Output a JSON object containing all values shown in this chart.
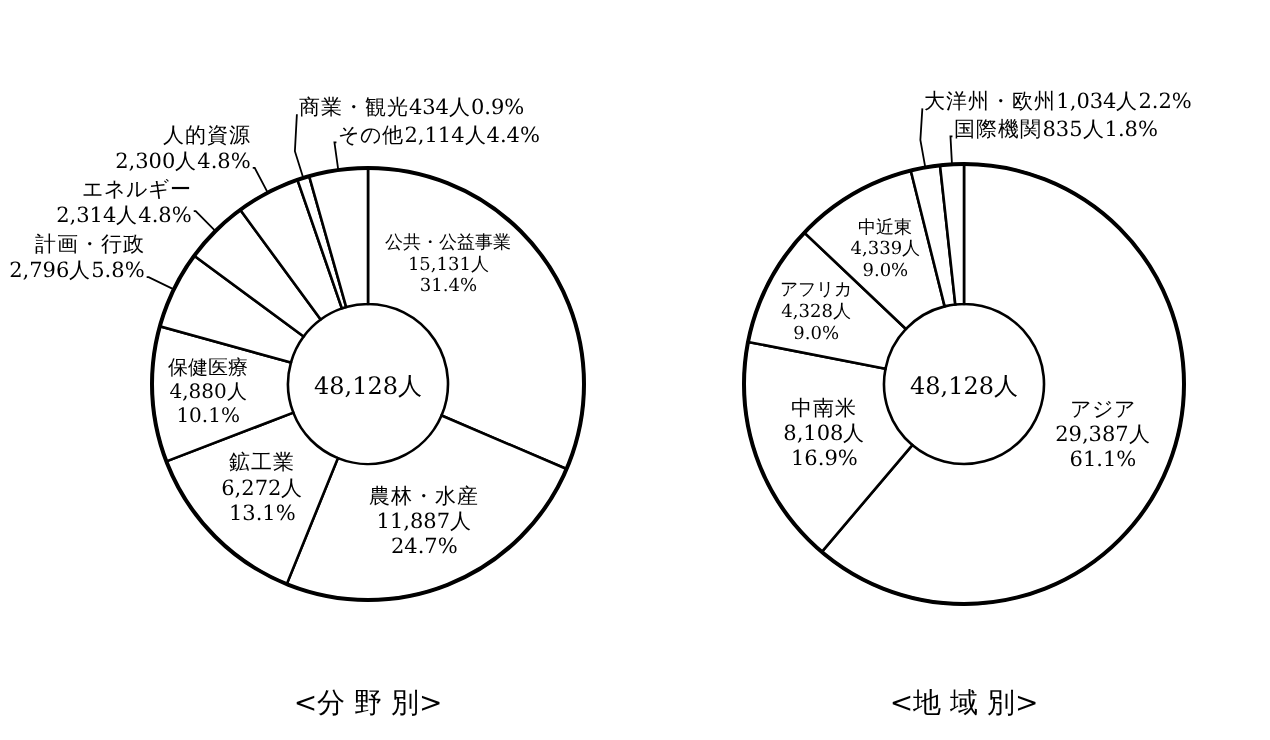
{
  "chart_data": [
    {
      "type": "donut",
      "title": "<分 野 別>",
      "categories": [
        "公共・公益事業",
        "農林・水産",
        "鉱工業",
        "保健医療",
        "計画・行政",
        "エネルギー",
        "人的資源",
        "商業・観光",
        "その他"
      ],
      "values": [
        15131,
        11887,
        6272,
        4880,
        2796,
        2314,
        2300,
        434,
        2114
      ],
      "value_labels": [
        "15,131人 31.4%",
        "11,887人 24.7%",
        "6,272人 13.1%",
        "4,880人 10.1%",
        "2,796人5.8%",
        "2,314人4.8%",
        "2,300人4.8%",
        "434人0.9%",
        "2,114人4.4%"
      ],
      "colors": [
        "#ffffff",
        "#ffffff",
        "#ffffff",
        "#ffffff",
        "#ffffff",
        "#ffffff",
        "#ffffff",
        "#ffffff",
        "#ffffff"
      ],
      "annotations": [
        "48,128人"
      ]
    },
    {
      "type": "donut",
      "title": "<地 域 別>",
      "categories": [
        "アジア",
        "中南米",
        "アフリカ",
        "中近東",
        "大洋州・欧州",
        "国際機関"
      ],
      "values": [
        29387,
        8108,
        4328,
        4339,
        1034,
        835
      ],
      "value_labels": [
        "29,387人 61.1%",
        "8,108人 16.9%",
        "4,328人 9.0%",
        "4,339人 9.0%",
        "1,034人2.2%",
        "835人1.8%"
      ],
      "colors": [
        "#ffffff",
        "#ffffff",
        "#ffffff",
        "#ffffff",
        "#ffffff",
        "#ffffff"
      ],
      "annotations": [
        "48,128人"
      ]
    }
  ]
}
